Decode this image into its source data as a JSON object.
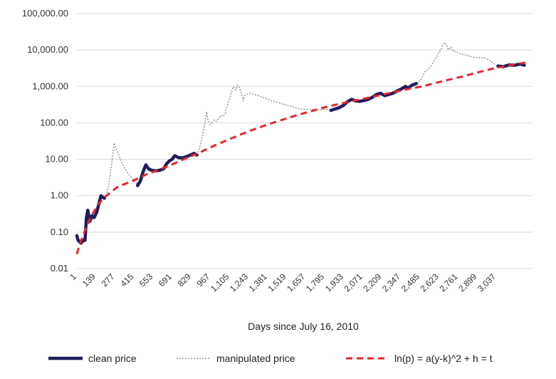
{
  "chart_data": {
    "type": "line",
    "title": "",
    "xlabel": "Days since July 16, 2010",
    "ylabel": "",
    "yscale": "log",
    "ylim": [
      0.01,
      100000
    ],
    "xlim": [
      1,
      3300
    ],
    "grid": "horizontal",
    "legend_position": "bottom",
    "y_ticks": [
      "0.01",
      "0.10",
      "1.00",
      "10.00",
      "100.00",
      "1,000.00",
      "10,000.00",
      "100,000.00"
    ],
    "x_ticks": [
      "1",
      "139",
      "277",
      "415",
      "553",
      "691",
      "829",
      "967",
      "1,105",
      "1,243",
      "1,381",
      "1,519",
      "1,657",
      "1,795",
      "1,933",
      "2,071",
      "2,209",
      "2,347",
      "2,485",
      "2,623",
      "2,761",
      "2,899",
      "3,037"
    ],
    "series": [
      {
        "name": "clean price",
        "color": "#1f1d5e",
        "style": "solid",
        "segments": [
          [
            [
              1,
              0.08
            ],
            [
              10,
              0.06
            ],
            [
              30,
              0.05
            ],
            [
              50,
              0.06
            ],
            [
              60,
              0.06
            ],
            [
              70,
              0.25
            ],
            [
              80,
              0.4
            ],
            [
              95,
              0.2
            ],
            [
              110,
              0.28
            ],
            [
              125,
              0.25
            ],
            [
              145,
              0.35
            ],
            [
              165,
              0.7
            ],
            [
              175,
              1.0
            ],
            [
              190,
              0.9
            ],
            [
              200,
              0.85
            ]
          ],
          [
            [
              440,
              1.9
            ],
            [
              460,
              2.5
            ],
            [
              480,
              4.5
            ],
            [
              500,
              7.0
            ],
            [
              520,
              5.5
            ],
            [
              540,
              5.0
            ],
            [
              570,
              4.8
            ],
            [
              600,
              5.0
            ],
            [
              630,
              5.5
            ],
            [
              650,
              7.5
            ],
            [
              670,
              9.0
            ],
            [
              690,
              10.0
            ],
            [
              710,
              12.5
            ],
            [
              740,
              11.0
            ],
            [
              770,
              11.0
            ],
            [
              800,
              12.0
            ],
            [
              830,
              13.5
            ],
            [
              850,
              14.5
            ],
            [
              870,
              13.0
            ]
          ],
          [
            [
              1840,
              220
            ],
            [
              1870,
              240
            ],
            [
              1900,
              260
            ],
            [
              1930,
              300
            ],
            [
              1960,
              380
            ],
            [
              1990,
              440
            ],
            [
              2020,
              400
            ],
            [
              2050,
              390
            ],
            [
              2080,
              410
            ],
            [
              2110,
              440
            ],
            [
              2140,
              500
            ],
            [
              2170,
              600
            ],
            [
              2200,
              650
            ],
            [
              2230,
              560
            ],
            [
              2260,
              600
            ],
            [
              2290,
              650
            ],
            [
              2320,
              750
            ],
            [
              2350,
              850
            ],
            [
              2380,
              1000
            ],
            [
              2400,
              900
            ],
            [
              2430,
              1100
            ],
            [
              2460,
              1200
            ]
          ],
          [
            [
              3050,
              3600
            ],
            [
              3090,
              3500
            ],
            [
              3130,
              3900
            ],
            [
              3170,
              3800
            ],
            [
              3210,
              4100
            ],
            [
              3240,
              3800
            ]
          ]
        ]
      },
      {
        "name": "manipulated price",
        "color": "#999999",
        "style": "dotted",
        "segments": [
          [
            [
              200,
              0.85
            ],
            [
              220,
              1.2
            ],
            [
              235,
              2.5
            ],
            [
              250,
              6.0
            ],
            [
              262,
              15
            ],
            [
              272,
              28
            ],
            [
              282,
              20
            ],
            [
              297,
              15
            ],
            [
              312,
              11
            ],
            [
              327,
              8.0
            ],
            [
              342,
              6.0
            ],
            [
              357,
              5.0
            ],
            [
              372,
              4.0
            ],
            [
              387,
              3.5
            ],
            [
              402,
              3.0
            ],
            [
              417,
              2.5
            ],
            [
              430,
              2.3
            ],
            [
              440,
              1.9
            ]
          ],
          [
            [
              870,
              13.0
            ],
            [
              885,
              18
            ],
            [
              900,
              30
            ],
            [
              915,
              55
            ],
            [
              930,
              100
            ],
            [
              940,
              200
            ],
            [
              950,
              120
            ],
            [
              965,
              90
            ],
            [
              980,
              100
            ],
            [
              995,
              120
            ],
            [
              1010,
              110
            ],
            [
              1025,
              130
            ],
            [
              1045,
              160
            ],
            [
              1060,
              150
            ],
            [
              1075,
              180
            ],
            [
              1090,
              300
            ],
            [
              1105,
              450
            ],
            [
              1120,
              700
            ],
            [
              1135,
              1000
            ],
            [
              1150,
              800
            ],
            [
              1165,
              1100
            ],
            [
              1180,
              900
            ],
            [
              1195,
              600
            ],
            [
              1205,
              400
            ],
            [
              1215,
              550
            ],
            [
              1230,
              600
            ],
            [
              1260,
              650
            ],
            [
              1290,
              600
            ],
            [
              1320,
              550
            ],
            [
              1350,
              500
            ],
            [
              1380,
              450
            ],
            [
              1410,
              400
            ],
            [
              1440,
              380
            ],
            [
              1470,
              350
            ],
            [
              1500,
              320
            ],
            [
              1530,
              300
            ],
            [
              1560,
              280
            ],
            [
              1590,
              250
            ],
            [
              1620,
              240
            ],
            [
              1650,
              230
            ],
            [
              1680,
              240
            ],
            [
              1710,
              230
            ],
            [
              1740,
              220
            ],
            [
              1770,
              230
            ],
            [
              1800,
              235
            ],
            [
              1820,
              230
            ],
            [
              1840,
              220
            ]
          ],
          [
            [
              2460,
              1200
            ],
            [
              2490,
              1500
            ],
            [
              2520,
              2500
            ],
            [
              2550,
              3000
            ],
            [
              2580,
              4500
            ],
            [
              2610,
              7000
            ],
            [
              2640,
              11000
            ],
            [
              2660,
              16000
            ],
            [
              2675,
              14000
            ],
            [
              2690,
              10000
            ],
            [
              2710,
              12000
            ],
            [
              2730,
              9000
            ],
            [
              2750,
              9000
            ],
            [
              2770,
              8000
            ],
            [
              2800,
              7500
            ],
            [
              2830,
              7000
            ],
            [
              2860,
              6500
            ],
            [
              2890,
              6300
            ],
            [
              2920,
              6000
            ],
            [
              2950,
              6200
            ],
            [
              2980,
              5500
            ],
            [
              3010,
              4500
            ],
            [
              3050,
              3600
            ]
          ]
        ]
      },
      {
        "name": "ln(p) = a(y-k)^2 + h = t",
        "color": "#e8262a",
        "style": "dashed",
        "points": [
          [
            1,
            0.025
          ],
          [
            20,
            0.045
          ],
          [
            50,
            0.09
          ],
          [
            100,
            0.25
          ],
          [
            150,
            0.55
          ],
          [
            200,
            0.9
          ],
          [
            300,
            1.8
          ],
          [
            400,
            2.5
          ],
          [
            500,
            3.8
          ],
          [
            600,
            5.2
          ],
          [
            700,
            7.5
          ],
          [
            800,
            11.0
          ],
          [
            900,
            16.0
          ],
          [
            1000,
            24
          ],
          [
            1100,
            35
          ],
          [
            1200,
            50
          ],
          [
            1300,
            70
          ],
          [
            1400,
            95
          ],
          [
            1500,
            125
          ],
          [
            1600,
            165
          ],
          [
            1700,
            210
          ],
          [
            1800,
            270
          ],
          [
            1900,
            330
          ],
          [
            2000,
            400
          ],
          [
            2100,
            480
          ],
          [
            2200,
            580
          ],
          [
            2300,
            700
          ],
          [
            2400,
            850
          ],
          [
            2500,
            1000
          ],
          [
            2600,
            1250
          ],
          [
            2700,
            1550
          ],
          [
            2800,
            1900
          ],
          [
            2900,
            2400
          ],
          [
            3000,
            3000
          ],
          [
            3100,
            3600
          ],
          [
            3200,
            4200
          ],
          [
            3250,
            4500
          ]
        ]
      }
    ]
  }
}
